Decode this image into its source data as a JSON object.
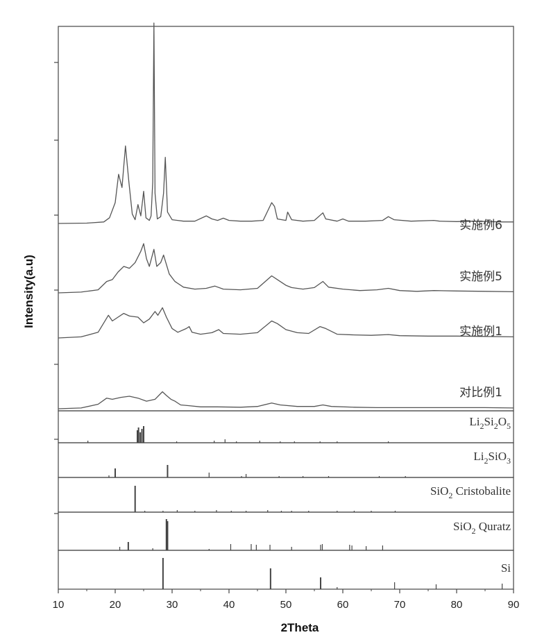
{
  "chart_data": {
    "type": "line",
    "xlabel": "2Theta",
    "ylabel": "Intensity(a.u)",
    "xlim": [
      10,
      90
    ],
    "x_ticks": [
      10,
      20,
      30,
      40,
      50,
      60,
      70,
      80,
      90
    ],
    "colors": {
      "trace": "#555555",
      "axis": "#444444"
    },
    "series": [
      {
        "name": "实施例6",
        "points": [
          [
            10,
            0
          ],
          [
            15,
            1
          ],
          [
            18,
            4
          ],
          [
            19,
            15
          ],
          [
            20,
            55
          ],
          [
            20.6,
            130
          ],
          [
            21.2,
            95
          ],
          [
            21.8,
            205
          ],
          [
            22.4,
            110
          ],
          [
            23,
            25
          ],
          [
            23.5,
            10
          ],
          [
            24,
            50
          ],
          [
            24.5,
            20
          ],
          [
            25,
            85
          ],
          [
            25.4,
            15
          ],
          [
            26,
            8
          ],
          [
            26.3,
            20
          ],
          [
            26.6,
            110
          ],
          [
            26.8,
            530
          ],
          [
            27,
            80
          ],
          [
            27.4,
            12
          ],
          [
            28,
            18
          ],
          [
            28.5,
            80
          ],
          [
            28.8,
            175
          ],
          [
            29.2,
            30
          ],
          [
            30,
            10
          ],
          [
            32,
            6
          ],
          [
            34,
            6
          ],
          [
            36,
            20
          ],
          [
            37,
            12
          ],
          [
            38,
            8
          ],
          [
            39,
            14
          ],
          [
            40,
            8
          ],
          [
            42,
            6
          ],
          [
            44,
            6
          ],
          [
            46,
            8
          ],
          [
            47.5,
            55
          ],
          [
            48,
            45
          ],
          [
            48.5,
            12
          ],
          [
            50,
            8
          ],
          [
            50.3,
            30
          ],
          [
            51,
            10
          ],
          [
            53,
            6
          ],
          [
            55,
            8
          ],
          [
            56.5,
            28
          ],
          [
            57,
            12
          ],
          [
            59,
            6
          ],
          [
            60,
            12
          ],
          [
            61,
            6
          ],
          [
            64,
            6
          ],
          [
            67,
            8
          ],
          [
            68,
            18
          ],
          [
            69,
            10
          ],
          [
            72,
            6
          ],
          [
            76,
            8
          ],
          [
            77,
            6
          ],
          [
            80,
            5
          ],
          [
            83,
            6
          ],
          [
            88,
            4
          ],
          [
            90,
            4
          ]
        ],
        "offset": 0.02
      },
      {
        "name": "实施例5",
        "points": [
          [
            10,
            0
          ],
          [
            14,
            2
          ],
          [
            17,
            8
          ],
          [
            18.5,
            30
          ],
          [
            19.5,
            35
          ],
          [
            20.5,
            55
          ],
          [
            21.5,
            70
          ],
          [
            22.5,
            65
          ],
          [
            23.5,
            80
          ],
          [
            24.5,
            110
          ],
          [
            25,
            130
          ],
          [
            25.5,
            90
          ],
          [
            26,
            70
          ],
          [
            26.8,
            115
          ],
          [
            27.3,
            70
          ],
          [
            28,
            80
          ],
          [
            28.5,
            100
          ],
          [
            29.5,
            50
          ],
          [
            30.5,
            30
          ],
          [
            32,
            15
          ],
          [
            34,
            10
          ],
          [
            36,
            12
          ],
          [
            37.5,
            18
          ],
          [
            39,
            10
          ],
          [
            42,
            8
          ],
          [
            45,
            12
          ],
          [
            47.5,
            45
          ],
          [
            48.5,
            35
          ],
          [
            50,
            20
          ],
          [
            51,
            14
          ],
          [
            53,
            10
          ],
          [
            55,
            14
          ],
          [
            56.5,
            30
          ],
          [
            57.5,
            15
          ],
          [
            60,
            10
          ],
          [
            63,
            6
          ],
          [
            66,
            8
          ],
          [
            68,
            12
          ],
          [
            70,
            6
          ],
          [
            73,
            4
          ],
          [
            76,
            6
          ],
          [
            80,
            5
          ],
          [
            85,
            4
          ],
          [
            90,
            3
          ]
        ],
        "offset": 0.02
      },
      {
        "name": "实施例1",
        "points": [
          [
            10,
            0
          ],
          [
            14,
            3
          ],
          [
            17,
            15
          ],
          [
            18.8,
            60
          ],
          [
            19.5,
            45
          ],
          [
            20.5,
            55
          ],
          [
            21.5,
            65
          ],
          [
            22.5,
            58
          ],
          [
            24,
            55
          ],
          [
            25,
            40
          ],
          [
            26,
            50
          ],
          [
            27,
            70
          ],
          [
            27.5,
            60
          ],
          [
            28.3,
            80
          ],
          [
            29,
            55
          ],
          [
            30,
            25
          ],
          [
            31,
            15
          ],
          [
            32.5,
            25
          ],
          [
            33,
            30
          ],
          [
            33.5,
            15
          ],
          [
            35,
            10
          ],
          [
            37,
            14
          ],
          [
            38.2,
            22
          ],
          [
            39,
            12
          ],
          [
            42,
            10
          ],
          [
            45,
            14
          ],
          [
            47.5,
            45
          ],
          [
            48.5,
            38
          ],
          [
            50,
            22
          ],
          [
            52,
            14
          ],
          [
            54,
            12
          ],
          [
            56,
            30
          ],
          [
            57,
            25
          ],
          [
            59,
            10
          ],
          [
            62,
            8
          ],
          [
            65,
            7
          ],
          [
            68,
            9
          ],
          [
            70,
            6
          ],
          [
            75,
            5
          ],
          [
            80,
            5
          ],
          [
            85,
            4
          ],
          [
            90,
            3
          ]
        ],
        "offset": 0.02
      },
      {
        "name": "对比例1",
        "points": [
          [
            10,
            0
          ],
          [
            14,
            2
          ],
          [
            17,
            12
          ],
          [
            18.5,
            28
          ],
          [
            19.5,
            25
          ],
          [
            21,
            30
          ],
          [
            22.5,
            33
          ],
          [
            24,
            28
          ],
          [
            25.5,
            20
          ],
          [
            27,
            25
          ],
          [
            28.3,
            45
          ],
          [
            29,
            35
          ],
          [
            29.8,
            25
          ],
          [
            30.5,
            20
          ],
          [
            31.5,
            10
          ],
          [
            33,
            8
          ],
          [
            35,
            5
          ],
          [
            38,
            5
          ],
          [
            42,
            4
          ],
          [
            45,
            6
          ],
          [
            47.5,
            15
          ],
          [
            49,
            10
          ],
          [
            52,
            6
          ],
          [
            55,
            6
          ],
          [
            56.5,
            10
          ],
          [
            58,
            6
          ],
          [
            62,
            4
          ],
          [
            66,
            3
          ],
          [
            70,
            3
          ],
          [
            75,
            3
          ],
          [
            80,
            3
          ],
          [
            85,
            3
          ],
          [
            90,
            2
          ]
        ],
        "offset": 0.02
      }
    ],
    "references": [
      {
        "name": "Li2Si2O5",
        "label": {
          "base1": "Li",
          "sub1": "2",
          "base2": "Si",
          "sub2": "2",
          "base3": "O",
          "sub3": "5"
        },
        "peaks": [
          [
            15.2,
            3
          ],
          [
            23.9,
            18
          ],
          [
            24.1,
            22
          ],
          [
            24.4,
            15
          ],
          [
            24.7,
            20
          ],
          [
            25.0,
            24
          ],
          [
            30.8,
            2
          ],
          [
            37.4,
            3
          ],
          [
            39.3,
            5
          ],
          [
            41.3,
            2
          ],
          [
            45.4,
            3
          ],
          [
            49.0,
            2
          ],
          [
            51.5,
            2
          ],
          [
            56.0,
            2
          ],
          [
            59.0,
            2
          ],
          [
            68.0,
            2
          ]
        ]
      },
      {
        "name": "Li2SiO3",
        "label": {
          "base1": "Li",
          "sub1": "2",
          "base2": "SiO",
          "sub2": "3"
        },
        "peaks": [
          [
            18.9,
            3
          ],
          [
            20.0,
            13
          ],
          [
            29.2,
            18
          ],
          [
            36.5,
            7
          ],
          [
            42.2,
            2
          ],
          [
            43.0,
            5
          ],
          [
            48.8,
            2
          ],
          [
            53.0,
            2
          ],
          [
            57.5,
            2
          ],
          [
            66.4,
            2
          ],
          [
            71.0,
            2
          ]
        ]
      },
      {
        "name": "SiO2 Cristobalite",
        "label": {
          "base1": "SiO",
          "sub1": "2",
          "suffix": " Cristobalite"
        },
        "peaks": [
          [
            23.5,
            38
          ],
          [
            25.2,
            2
          ],
          [
            28.4,
            2
          ],
          [
            30.9,
            3
          ],
          [
            34.0,
            2
          ],
          [
            37.8,
            3
          ],
          [
            40.4,
            2
          ],
          [
            43.0,
            2
          ],
          [
            46.8,
            3
          ],
          [
            49.2,
            2
          ],
          [
            51.0,
            2
          ],
          [
            54.0,
            2
          ],
          [
            59.0,
            2
          ],
          [
            62.0,
            2
          ],
          [
            65.0,
            2
          ],
          [
            69.2,
            2
          ]
        ]
      },
      {
        "name": "SiO2 Quratz",
        "label": {
          "base1": "SiO",
          "sub1": "2",
          "suffix": " Quratz"
        },
        "peaks": [
          [
            20.8,
            5
          ],
          [
            22.3,
            12
          ],
          [
            26.6,
            3
          ],
          [
            29.0,
            45
          ],
          [
            29.2,
            42
          ],
          [
            36.5,
            2
          ],
          [
            40.3,
            9
          ],
          [
            43.9,
            9
          ],
          [
            44.8,
            8
          ],
          [
            47.2,
            8
          ],
          [
            51.0,
            5
          ],
          [
            56.1,
            8
          ],
          [
            56.4,
            9
          ],
          [
            61.2,
            8
          ],
          [
            61.6,
            7
          ],
          [
            64.1,
            6
          ],
          [
            67.0,
            7
          ]
        ]
      },
      {
        "name": "Si",
        "label": {
          "base1": "Si"
        },
        "peaks": [
          [
            28.4,
            45
          ],
          [
            47.3,
            30
          ],
          [
            56.1,
            17
          ],
          [
            59.0,
            3
          ],
          [
            69.1,
            10
          ],
          [
            76.4,
            7
          ],
          [
            88.0,
            8
          ]
        ]
      }
    ]
  }
}
